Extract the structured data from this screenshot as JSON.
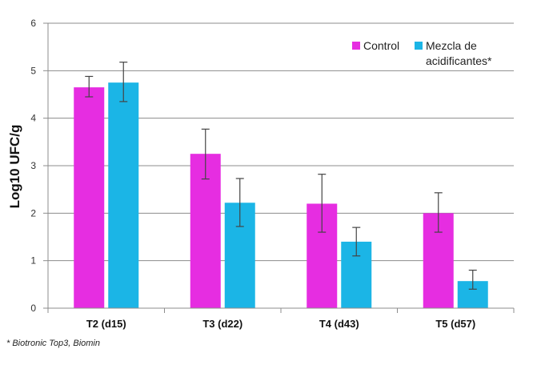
{
  "chart_data": {
    "type": "bar",
    "title": "",
    "xlabel": "",
    "ylabel": "Log10 UFC/g",
    "ylim": [
      0,
      6
    ],
    "yticks": [
      "0",
      "1",
      "2",
      "3",
      "4",
      "5",
      "6"
    ],
    "grid": true,
    "legend_position": "top-right",
    "categories": [
      "T2 (d15)",
      "T3 (d22)",
      "T4 (d43)",
      "T5 (d57)"
    ],
    "series": [
      {
        "name": "Control",
        "color": "#e62de1",
        "values": [
          4.65,
          3.25,
          2.2,
          2.0
        ],
        "error_low": [
          4.45,
          2.72,
          1.6,
          1.6
        ],
        "error_high": [
          4.88,
          3.77,
          2.82,
          2.43
        ]
      },
      {
        "name": "Mezcla de acidificantes*",
        "legend_lines": [
          "Mezcla de",
          "acidificantes*"
        ],
        "color": "#1bb5e6",
        "values": [
          4.75,
          2.22,
          1.4,
          0.57
        ],
        "error_low": [
          4.35,
          1.72,
          1.1,
          0.4
        ],
        "error_high": [
          5.18,
          2.73,
          1.7,
          0.8
        ]
      }
    ],
    "footnote": "* Biotronic Top3, Biomin"
  }
}
